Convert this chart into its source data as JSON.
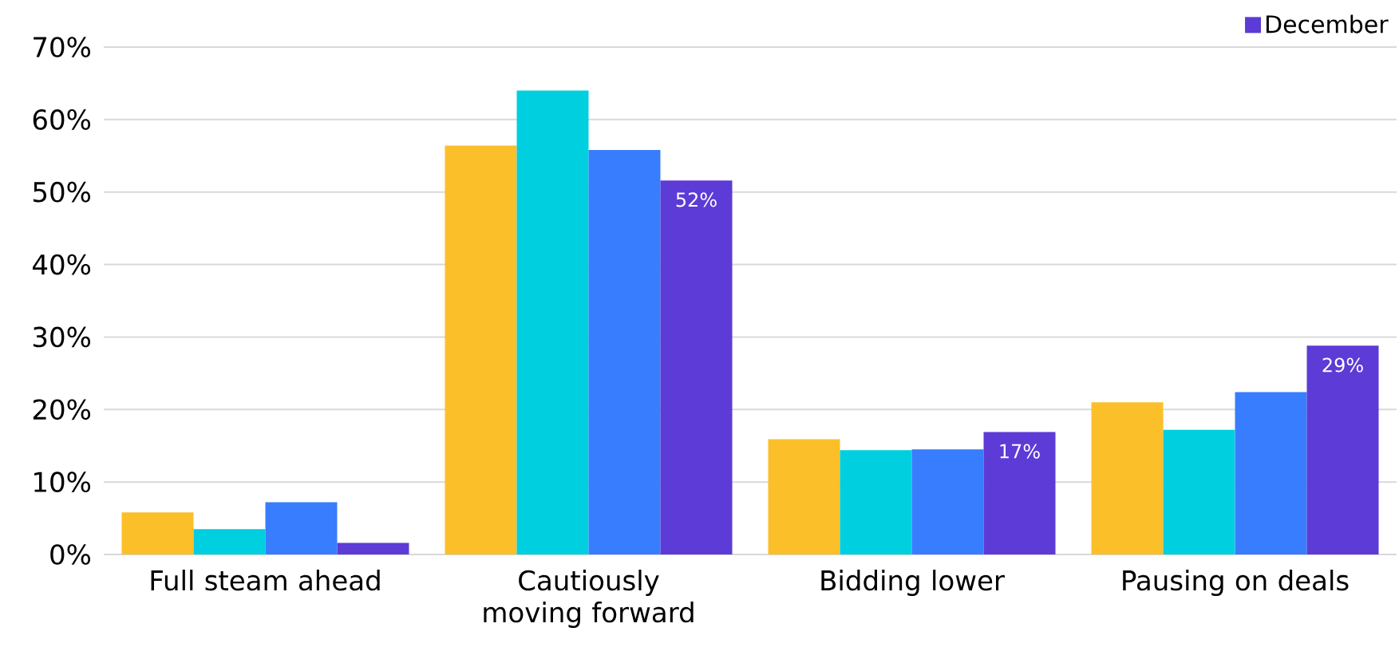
{
  "chart_data": {
    "type": "bar",
    "categories": [
      "Full steam ahead",
      "Cautiously moving forward",
      "Bidding lower",
      "Pausing on deals"
    ],
    "series": [
      {
        "color": "#fbbf2a",
        "values": [
          5.8,
          56.4,
          15.9,
          21.0
        ]
      },
      {
        "color": "#00cfe0",
        "values": [
          3.5,
          64.0,
          14.4,
          17.2
        ]
      },
      {
        "color": "#377dfd",
        "values": [
          7.2,
          55.8,
          14.5,
          22.4
        ]
      },
      {
        "name": "December",
        "color": "#5c3bd6",
        "values": [
          1.6,
          51.6,
          16.9,
          28.8
        ],
        "value_labels": [
          null,
          "52%",
          "17%",
          "29%"
        ]
      }
    ],
    "ylim": [
      0,
      70
    ],
    "yticks": [
      {
        "value": 0,
        "label": "0%"
      },
      {
        "value": 10,
        "label": "10%"
      },
      {
        "value": 20,
        "label": "20%"
      },
      {
        "value": 30,
        "label": "30%"
      },
      {
        "value": 40,
        "label": "40%"
      },
      {
        "value": 50,
        "label": "50%"
      },
      {
        "value": 60,
        "label": "60%"
      },
      {
        "value": 70,
        "label": "70%"
      }
    ],
    "grid": "y",
    "legend": "top right"
  }
}
